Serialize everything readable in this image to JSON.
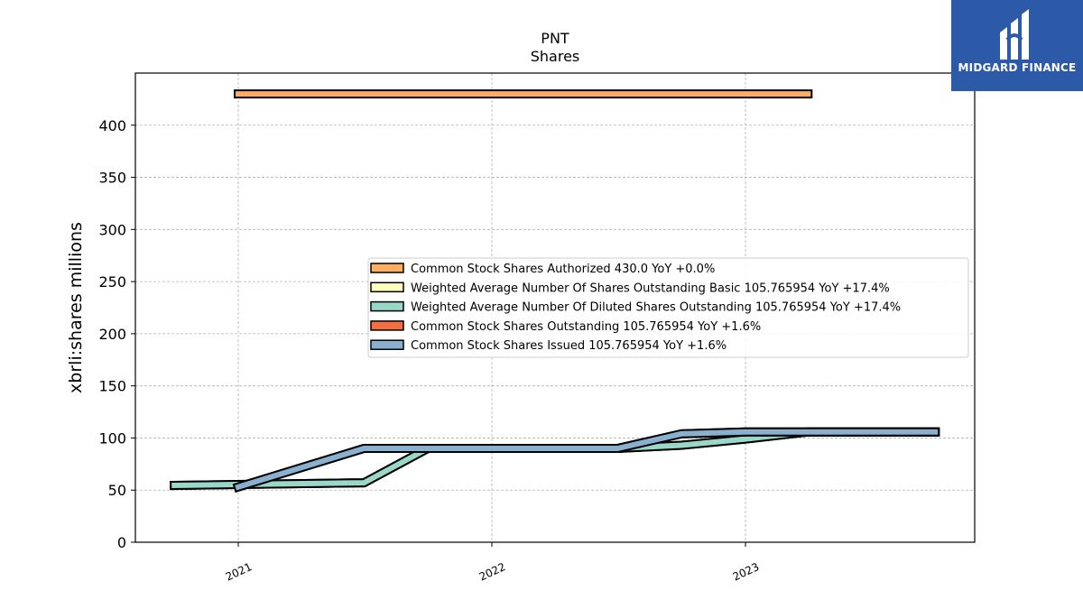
{
  "chart_data": {
    "type": "line",
    "title": "PNT",
    "subtitle": "Shares",
    "xlabel": "",
    "ylabel": "xbrli:shares millions",
    "ylim": [
      0,
      450
    ],
    "yticks": [
      0,
      50,
      100,
      150,
      200,
      250,
      300,
      350,
      400
    ],
    "xticks": [
      "2021",
      "2022",
      "2023"
    ],
    "grid": true,
    "legend_position": "center-right",
    "series": [
      {
        "name": "Common Stock Shares Authorized",
        "legend": "Common Stock Shares Authorized  430.0 YoY +0.0%",
        "color": "#fdae61",
        "points": [
          [
            "2021-01-01",
            430.0
          ],
          [
            "2023-04-01",
            430.0
          ]
        ]
      },
      {
        "name": "Weighted Average Number Of Shares Outstanding Basic",
        "legend": "Weighted Average Number Of Shares Outstanding Basic  105.765954 YoY +17.4%",
        "color": "#ffffbf",
        "points": [
          [
            "2020-10-01",
            54.5
          ],
          [
            "2021-07-01",
            57.0
          ],
          [
            "2021-10-01",
            90.0
          ],
          [
            "2022-07-01",
            90.0
          ],
          [
            "2022-10-01",
            93.0
          ],
          [
            "2023-01-01",
            99.0
          ],
          [
            "2023-04-01",
            105.77
          ],
          [
            "2023-10-01",
            105.77
          ]
        ]
      },
      {
        "name": "Weighted Average Number Of Diluted Shares Outstanding",
        "legend": "Weighted Average Number Of Diluted Shares Outstanding  105.765954 YoY +17.4%",
        "color": "#99d8c9",
        "points": [
          [
            "2020-10-01",
            54.5
          ],
          [
            "2021-07-01",
            57.0
          ],
          [
            "2021-10-01",
            90.0
          ],
          [
            "2022-07-01",
            90.0
          ],
          [
            "2022-10-01",
            93.0
          ],
          [
            "2023-01-01",
            99.0
          ],
          [
            "2023-04-01",
            105.77
          ],
          [
            "2023-10-01",
            105.77
          ]
        ]
      },
      {
        "name": "Common Stock Shares Outstanding",
        "legend": "Common Stock Shares Outstanding  105.765954 YoY +1.6%",
        "color": "#f46d43",
        "points": [
          [
            "2021-01-01",
            53.0
          ],
          [
            "2021-07-01",
            90.0
          ],
          [
            "2022-07-01",
            90.0
          ],
          [
            "2022-10-01",
            104.0
          ],
          [
            "2023-01-01",
            105.77
          ],
          [
            "2023-10-01",
            105.77
          ]
        ]
      },
      {
        "name": "Common Stock Shares Issued",
        "legend": "Common Stock Shares Issued  105.765954 YoY +1.6%",
        "color": "#8ab0d0",
        "points": [
          [
            "2021-01-01",
            53.0
          ],
          [
            "2021-07-01",
            90.0
          ],
          [
            "2022-07-01",
            90.0
          ],
          [
            "2022-10-01",
            104.0
          ],
          [
            "2023-01-01",
            105.77
          ],
          [
            "2023-10-01",
            105.77
          ]
        ]
      }
    ]
  },
  "logo": {
    "brand": "MIDGARD FINANCE",
    "background": "#2c5aa8"
  }
}
